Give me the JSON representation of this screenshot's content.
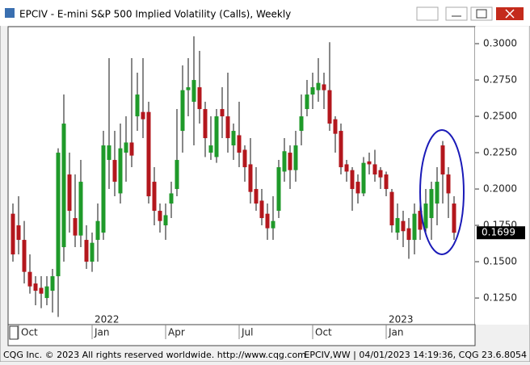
{
  "window_title": "EPCIV - E-mini S&P 500 Implied Volatility (Calls), Weekly",
  "footer_left": "CQG Inc. © 2023 All rights reserved worldwide. http://www.cqg.com",
  "footer_right": "EPCIV,WW | 04/01/2023 14:19:36, CQG 23.6.8054",
  "chart_data": {
    "type": "candlestick",
    "categories": [
      null,
      "Oct",
      null,
      null,
      null,
      null,
      null,
      null,
      null,
      null,
      null,
      null,
      null,
      null,
      "Jan",
      null,
      null,
      null,
      null,
      null,
      null,
      null,
      null,
      null,
      null,
      null,
      null,
      "Apr",
      null,
      null,
      null,
      null,
      null,
      null,
      null,
      null,
      null,
      null,
      null,
      null,
      "Jul",
      null,
      null,
      null,
      null,
      null,
      null,
      null,
      null,
      null,
      null,
      null,
      null,
      "Oct",
      null,
      null,
      null,
      null,
      null,
      null,
      null,
      null,
      null,
      null,
      null,
      null,
      "Jan",
      null,
      null,
      null,
      null,
      null,
      null,
      null,
      null,
      null,
      null,
      null,
      null
    ],
    "year_labels": [
      {
        "value": 14,
        "label": "2022"
      },
      {
        "value": 66,
        "label": "2023"
      }
    ],
    "open": [
      0.183,
      0.175,
      0.165,
      0.143,
      0.135,
      0.132,
      0.125,
      0.13,
      0.14,
      0.16,
      0.21,
      0.18,
      0.168,
      0.165,
      0.15,
      0.165,
      0.17,
      0.22,
      0.22,
      0.197,
      0.225,
      0.232,
      0.25,
      0.253,
      0.253,
      0.205,
      0.185,
      0.175,
      0.19,
      0.2,
      0.24,
      0.268,
      0.26,
      0.27,
      0.255,
      0.225,
      0.222,
      0.255,
      0.25,
      0.23,
      0.237,
      0.227,
      0.217,
      0.2,
      0.192,
      0.183,
      0.173,
      0.185,
      0.212,
      0.225,
      0.213,
      0.24,
      0.255,
      0.265,
      0.268,
      0.272,
      0.268,
      0.248,
      0.24,
      0.217,
      0.213,
      0.205,
      0.197,
      0.219,
      0.217,
      0.213,
      0.21,
      0.198,
      0.17,
      0.178,
      0.173,
      0.165,
      0.185,
      0.173,
      0.18,
      0.19,
      0.23,
      0.21,
      0.19
    ],
    "high": [
      0.19,
      0.195,
      0.178,
      0.155,
      0.14,
      0.14,
      0.14,
      0.145,
      0.228,
      0.265,
      0.225,
      0.21,
      0.22,
      0.175,
      0.17,
      0.19,
      0.24,
      0.29,
      0.24,
      0.245,
      0.25,
      0.29,
      0.28,
      0.29,
      0.26,
      0.215,
      0.19,
      0.19,
      0.205,
      0.255,
      0.285,
      0.29,
      0.305,
      0.295,
      0.26,
      0.25,
      0.255,
      0.27,
      0.28,
      0.245,
      0.26,
      0.23,
      0.235,
      0.215,
      0.2,
      0.19,
      0.195,
      0.22,
      0.235,
      0.23,
      0.24,
      0.265,
      0.275,
      0.28,
      0.29,
      0.28,
      0.301,
      0.25,
      0.245,
      0.22,
      0.215,
      0.21,
      0.222,
      0.225,
      0.227,
      0.215,
      0.212,
      0.2,
      0.19,
      0.185,
      0.18,
      0.19,
      0.195,
      0.2,
      0.205,
      0.215,
      0.233,
      0.215,
      0.195
    ],
    "low": [
      0.15,
      0.155,
      0.135,
      0.128,
      0.12,
      0.118,
      0.12,
      0.115,
      0.112,
      0.15,
      0.17,
      0.16,
      0.16,
      0.145,
      0.143,
      0.15,
      0.165,
      0.2,
      0.195,
      0.19,
      0.205,
      0.215,
      0.24,
      0.235,
      0.19,
      0.175,
      0.17,
      0.165,
      0.18,
      0.195,
      0.225,
      0.25,
      0.23,
      0.245,
      0.222,
      0.22,
      0.218,
      0.235,
      0.225,
      0.22,
      0.215,
      0.205,
      0.19,
      0.185,
      0.175,
      0.165,
      0.165,
      0.18,
      0.205,
      0.2,
      0.205,
      0.23,
      0.25,
      0.255,
      0.26,
      0.255,
      0.24,
      0.225,
      0.21,
      0.205,
      0.185,
      0.19,
      0.195,
      0.21,
      0.205,
      0.2,
      0.195,
      0.17,
      0.165,
      0.16,
      0.152,
      0.155,
      0.165,
      0.168,
      0.165,
      0.175,
      0.19,
      0.18,
      0.165
    ],
    "close": [
      0.155,
      0.165,
      0.143,
      0.133,
      0.13,
      0.128,
      0.133,
      0.14,
      0.225,
      0.245,
      0.185,
      0.168,
      0.205,
      0.15,
      0.163,
      0.178,
      0.23,
      0.23,
      0.205,
      0.228,
      0.232,
      0.223,
      0.265,
      0.248,
      0.195,
      0.185,
      0.178,
      0.182,
      0.197,
      0.22,
      0.268,
      0.27,
      0.275,
      0.255,
      0.235,
      0.23,
      0.25,
      0.25,
      0.235,
      0.24,
      0.225,
      0.215,
      0.198,
      0.19,
      0.18,
      0.173,
      0.178,
      0.215,
      0.226,
      0.213,
      0.23,
      0.25,
      0.265,
      0.27,
      0.273,
      0.268,
      0.245,
      0.238,
      0.215,
      0.212,
      0.2,
      0.197,
      0.218,
      0.217,
      0.21,
      0.208,
      0.2,
      0.175,
      0.18,
      0.171,
      0.165,
      0.183,
      0.172,
      0.19,
      0.2,
      0.205,
      0.21,
      0.197,
      0.1699
    ],
    "up_color": "#1f9a2a",
    "down_color": "#b3171d",
    "ylim": [
      0.1067,
      0.3117
    ],
    "yticks": [
      {
        "value": 0.125,
        "label": "0.1250"
      },
      {
        "value": 0.15,
        "label": "0.1500"
      },
      {
        "value": 0.175,
        "label": "0.1750"
      },
      {
        "value": 0.2,
        "label": "0.2000"
      },
      {
        "value": 0.225,
        "label": "0.2250"
      },
      {
        "value": 0.25,
        "label": "0.2500"
      },
      {
        "value": 0.275,
        "label": "0.2750"
      },
      {
        "value": 0.3,
        "label": "0.3000"
      }
    ],
    "last_value": 0.1699
  }
}
